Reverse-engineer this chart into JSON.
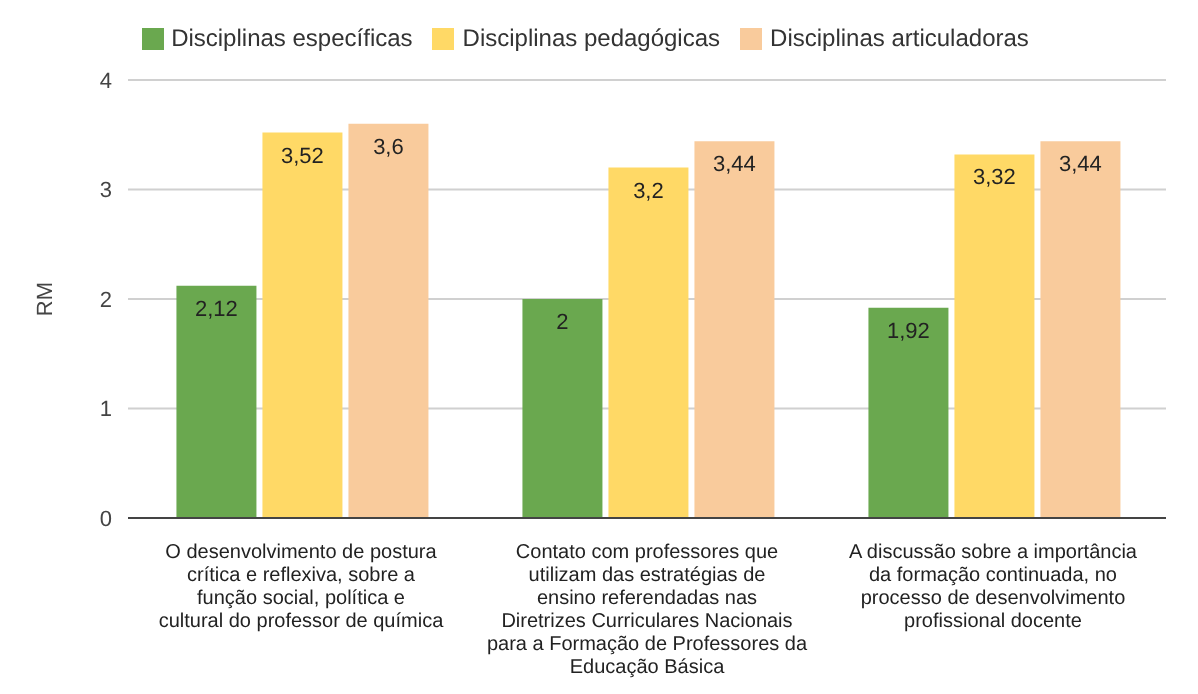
{
  "chart_data": {
    "type": "bar",
    "ylabel": "RM",
    "categories": [
      "O desenvolvimento de postura crítica e reflexiva, sobre a função social, política e cultural do professor de química",
      "Contato com professores que utilizam das estratégias de ensino referendadas nas Diretrizes Curriculares Nacionais para a Formação de Professores da Educação Básica",
      "A discussão sobre a importância da formação continuada, no processo de desenvolvimento profissional docente"
    ],
    "series": [
      {
        "name": "Disciplinas específicas",
        "color": "#6aa84f",
        "values": [
          2.12,
          2,
          1.92
        ],
        "value_labels": [
          "2,12",
          "2",
          "1,92"
        ]
      },
      {
        "name": "Disciplinas pedagógicas",
        "color": "#ffd966",
        "values": [
          3.52,
          3.2,
          3.32
        ],
        "value_labels": [
          "3,52",
          "3,2",
          "3,32"
        ]
      },
      {
        "name": "Disciplinas articuladoras",
        "color": "#f9cb9c",
        "values": [
          3.6,
          3.44,
          3.44
        ],
        "value_labels": [
          "3,6",
          "3,44",
          "3,44"
        ]
      }
    ],
    "ylim": [
      0,
      4
    ],
    "yticks": [
      0,
      1,
      2,
      3,
      4
    ],
    "grid": "y",
    "legend": "top"
  }
}
